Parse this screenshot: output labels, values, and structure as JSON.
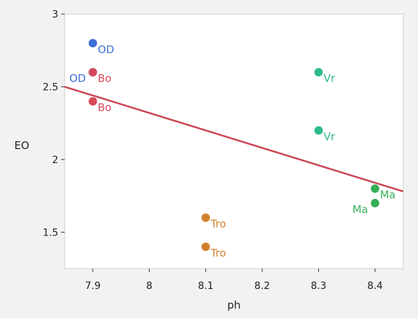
{
  "chart_data": {
    "type": "scatter",
    "xlabel": "ph",
    "ylabel": "EO",
    "xlim": [
      7.85,
      8.45
    ],
    "ylim": [
      1.25,
      3.0
    ],
    "x_ticks": [
      7.9,
      8.0,
      8.1,
      8.2,
      8.3,
      8.4
    ],
    "x_tick_labels": [
      "7.9",
      "8",
      "8.1",
      "8.2",
      "8.3",
      "8.4"
    ],
    "y_ticks": [
      1.5,
      2.0,
      2.5,
      3.0
    ],
    "y_tick_labels": [
      "1.5",
      "2",
      "2.5",
      "3"
    ],
    "grid": false,
    "points": [
      {
        "x": 7.9,
        "y": 2.8,
        "label": "OD",
        "color": "#3d6fd8",
        "label_pos": "right-below"
      },
      {
        "x": 7.9,
        "y": 2.6,
        "label": "OD",
        "color": "#3d6fd8",
        "label_pos": "left-below"
      },
      {
        "x": 7.9,
        "y": 2.6,
        "label": "Bo",
        "color": "#d7495a",
        "label_pos": "right-below"
      },
      {
        "x": 7.9,
        "y": 2.4,
        "label": "Bo",
        "color": "#d7495a",
        "label_pos": "right-below"
      },
      {
        "x": 8.3,
        "y": 2.6,
        "label": "Vr",
        "color": "#2fba8f",
        "label_pos": "right-below"
      },
      {
        "x": 8.3,
        "y": 2.2,
        "label": "Vr",
        "color": "#2fba8f",
        "label_pos": "right-below"
      },
      {
        "x": 8.4,
        "y": 1.8,
        "label": "Ma",
        "color": "#35ae56",
        "label_pos": "right-below"
      },
      {
        "x": 8.4,
        "y": 1.7,
        "label": "Ma",
        "color": "#35ae56",
        "label_pos": "left-below"
      },
      {
        "x": 8.1,
        "y": 1.6,
        "label": "Tro",
        "color": "#d2812b",
        "label_pos": "right-below"
      },
      {
        "x": 8.1,
        "y": 1.4,
        "label": "Tro",
        "color": "#d2812b",
        "label_pos": "right-below"
      }
    ],
    "fit_line": {
      "x": [
        7.85,
        8.45
      ],
      "y": [
        2.5,
        1.78
      ],
      "color": "#cc4452"
    }
  }
}
